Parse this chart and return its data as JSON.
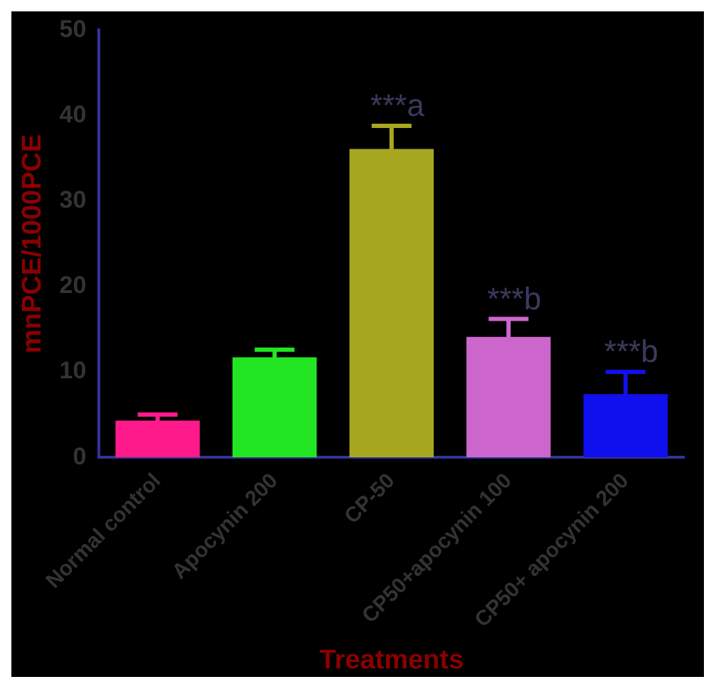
{
  "chart_data": {
    "type": "bar",
    "xlabel": "Treatments",
    "ylabel": "mnPCE/1000PCE",
    "categories": [
      "Normal control",
      "Apocynin 200",
      "CP-50",
      "CP50+apocynin 100",
      "CP50+ apocynin 200"
    ],
    "values": [
      4.3,
      11.7,
      36.1,
      14.1,
      7.4
    ],
    "errors": [
      0.7,
      0.9,
      2.7,
      2.1,
      2.6
    ],
    "colors": [
      "#ff1a8c",
      "#22e622",
      "#a8a820",
      "#cc66cc",
      "#1010ee"
    ],
    "ylim": [
      0,
      50
    ],
    "yticks": [
      0,
      10,
      20,
      30,
      40,
      50
    ],
    "grid": false,
    "legend": false,
    "annotations": [
      {
        "text": "***a",
        "x": "CP-50",
        "y": 38.8
      },
      {
        "text": "***b",
        "x": "CP50+apocynin 100",
        "y": 16.2
      },
      {
        "text": "***b",
        "x": "CP50+ apocynin 200",
        "y": 10
      }
    ]
  }
}
